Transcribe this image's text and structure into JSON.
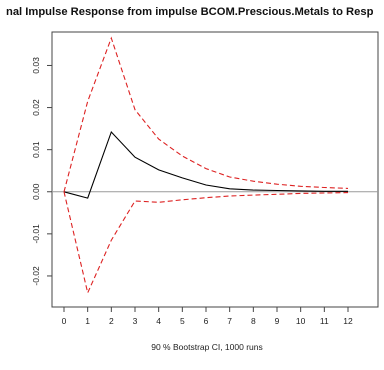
{
  "chart_data": {
    "type": "line",
    "title": "nal Impulse Response from impulse BCOM.Prescious.Metals to  Resp",
    "xlabel": "90 % Bootstrap CI,  1000 runs",
    "ylabel": "",
    "x": [
      0,
      1,
      2,
      3,
      4,
      5,
      6,
      7,
      8,
      9,
      10,
      11,
      12
    ],
    "xlim": [
      0,
      12
    ],
    "ylim": [
      -0.025,
      0.037
    ],
    "x_ticks": [
      "0",
      "1",
      "2",
      "3",
      "4",
      "5",
      "6",
      "7",
      "8",
      "9",
      "10",
      "11",
      "12"
    ],
    "y_ticks": [
      "-0.02",
      "-0.01",
      "0.00",
      "0.01",
      "0.02",
      "0.03"
    ],
    "zero_line": true,
    "grid": false,
    "series": [
      {
        "role": "response",
        "color": "#000000",
        "line_style": "solid",
        "values": [
          0,
          -0.0015,
          0.0142,
          0.0082,
          0.0052,
          0.0033,
          0.0016,
          0.0007,
          0.0004,
          0.0003,
          0.0002,
          0.0001,
          0.0001
        ]
      },
      {
        "role": "upper",
        "color": "#dd2222",
        "line_style": "dashed",
        "values": [
          0,
          0.0215,
          0.0365,
          0.0195,
          0.0125,
          0.0085,
          0.0055,
          0.0035,
          0.0025,
          0.0018,
          0.0013,
          0.001,
          0.0008
        ]
      },
      {
        "role": "lower",
        "color": "#dd2222",
        "line_style": "dashed",
        "values": [
          0,
          -0.024,
          -0.0115,
          -0.0022,
          -0.0025,
          -0.0019,
          -0.0014,
          -0.001,
          -0.0008,
          -0.0006,
          -0.0004,
          -0.0003,
          -0.0002
        ]
      }
    ]
  }
}
